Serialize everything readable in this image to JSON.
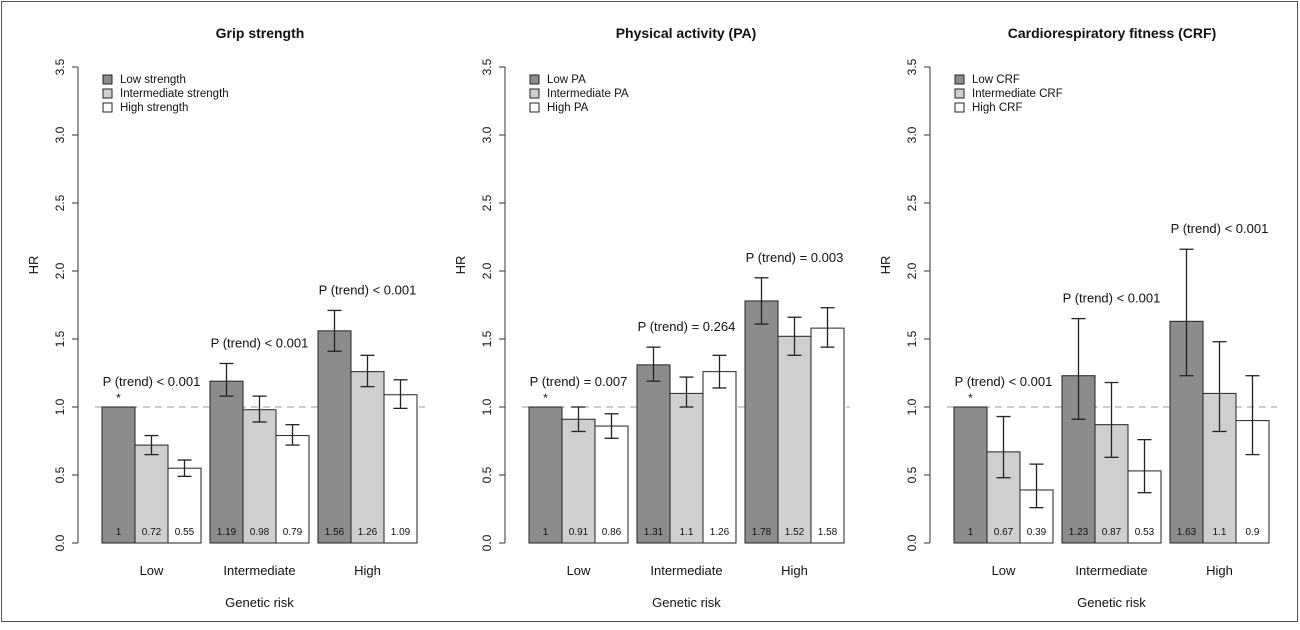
{
  "chart_data": [
    {
      "type": "bar",
      "title": "Grip strength",
      "xlabel": "Genetic risk",
      "ylabel": "HR",
      "ylim": [
        0,
        3.5
      ],
      "yticks": [
        "0.0",
        "0.5",
        "1.0",
        "1.5",
        "2.0",
        "2.5",
        "3.0",
        "3.5"
      ],
      "categories": [
        "Low",
        "Intermediate",
        "High"
      ],
      "reference_line": 1.0,
      "legend_position": "top-left",
      "series": [
        {
          "name": "Low strength",
          "color": "#8c8c8c",
          "values": [
            1,
            1.19,
            1.56
          ],
          "labels": [
            "1",
            "1.19",
            "1.56"
          ],
          "ci_low": [
            null,
            1.08,
            1.41
          ],
          "ci_high": [
            null,
            1.32,
            1.71
          ]
        },
        {
          "name": "Intermediate strength",
          "color": "#cfcfcf",
          "values": [
            0.72,
            0.98,
            1.26
          ],
          "labels": [
            "0.72",
            "0.98",
            "1.26"
          ],
          "ci_low": [
            0.65,
            0.89,
            1.15
          ],
          "ci_high": [
            0.79,
            1.08,
            1.38
          ]
        },
        {
          "name": "High strength",
          "color": "#ffffff",
          "values": [
            0.55,
            0.79,
            1.09
          ],
          "labels": [
            "0.55",
            "0.79",
            "1.09"
          ],
          "ci_low": [
            0.49,
            0.72,
            0.99
          ],
          "ci_high": [
            0.61,
            0.87,
            1.2
          ]
        }
      ],
      "trend_labels": [
        "P (trend) < 0.001",
        "P (trend) < 0.001",
        "P (trend) < 0.001"
      ],
      "reference_marker": "*"
    },
    {
      "type": "bar",
      "title": "Physical activity (PA)",
      "xlabel": "Genetic risk",
      "ylabel": "HR",
      "ylim": [
        0,
        3.5
      ],
      "yticks": [
        "0.0",
        "0.5",
        "1.0",
        "1.5",
        "2.0",
        "2.5",
        "3.0",
        "3.5"
      ],
      "categories": [
        "Low",
        "Intermediate",
        "High"
      ],
      "reference_line": 1.0,
      "legend_position": "top-left",
      "series": [
        {
          "name": "Low PA",
          "color": "#8c8c8c",
          "values": [
            1,
            1.31,
            1.78
          ],
          "labels": [
            "1",
            "1.31",
            "1.78"
          ],
          "ci_low": [
            null,
            1.19,
            1.61
          ],
          "ci_high": [
            null,
            1.44,
            1.95
          ]
        },
        {
          "name": "Intermediate PA",
          "color": "#cfcfcf",
          "values": [
            0.91,
            1.1,
            1.52
          ],
          "labels": [
            "0.91",
            "1.1",
            "1.52"
          ],
          "ci_low": [
            0.82,
            1.0,
            1.38
          ],
          "ci_high": [
            1.0,
            1.22,
            1.66
          ]
        },
        {
          "name": "High PA",
          "color": "#ffffff",
          "values": [
            0.86,
            1.26,
            1.58
          ],
          "labels": [
            "0.86",
            "1.26",
            "1.58"
          ],
          "ci_low": [
            0.77,
            1.14,
            1.44
          ],
          "ci_high": [
            0.95,
            1.38,
            1.73
          ]
        }
      ],
      "trend_labels": [
        "P (trend) = 0.007",
        "P (trend) = 0.264",
        "P (trend) = 0.003"
      ],
      "reference_marker": "*"
    },
    {
      "type": "bar",
      "title": "Cardiorespiratory fitness (CRF)",
      "xlabel": "Genetic risk",
      "ylabel": "HR",
      "ylim": [
        0,
        3.5
      ],
      "yticks": [
        "0.0",
        "0.5",
        "1.0",
        "1.5",
        "2.0",
        "2.5",
        "3.0",
        "3.5"
      ],
      "categories": [
        "Low",
        "Intermediate",
        "High"
      ],
      "reference_line": 1.0,
      "legend_position": "top-left",
      "series": [
        {
          "name": "Low CRF",
          "color": "#8c8c8c",
          "values": [
            1,
            1.23,
            1.63
          ],
          "labels": [
            "1",
            "1.23",
            "1.63"
          ],
          "ci_low": [
            null,
            0.91,
            1.23
          ],
          "ci_high": [
            null,
            1.65,
            2.16
          ]
        },
        {
          "name": "Intermediate CRF",
          "color": "#cfcfcf",
          "values": [
            0.67,
            0.87,
            1.1
          ],
          "labels": [
            "0.67",
            "0.87",
            "1.1"
          ],
          "ci_low": [
            0.48,
            0.63,
            0.82
          ],
          "ci_high": [
            0.93,
            1.18,
            1.48
          ]
        },
        {
          "name": "High CRF",
          "color": "#ffffff",
          "values": [
            0.39,
            0.53,
            0.9
          ],
          "labels": [
            "0.39",
            "0.53",
            "0.9"
          ],
          "ci_low": [
            0.26,
            0.37,
            0.65
          ],
          "ci_high": [
            0.58,
            0.76,
            1.23
          ]
        }
      ],
      "trend_labels": [
        "P (trend) < 0.001",
        "P (trend) < 0.001",
        "P (trend) < 0.001"
      ],
      "reference_marker": "*"
    }
  ]
}
